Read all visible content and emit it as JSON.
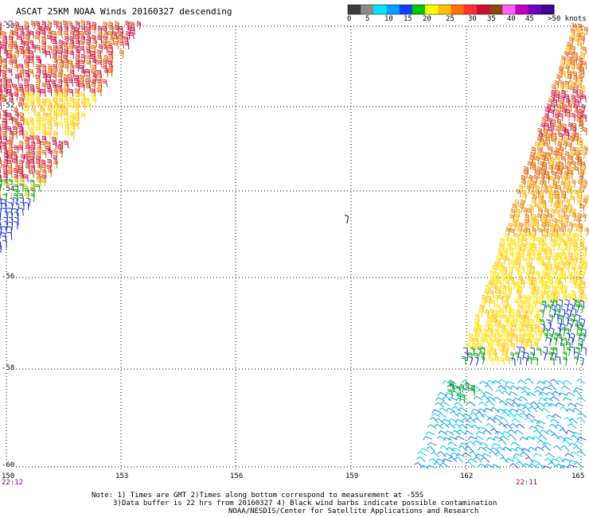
{
  "title": "ASCAT 25KM NOAA Winds 20160327 descending",
  "color_scale": {
    "colors": [
      "#3c3c3c",
      "#8c8c8c",
      "#00e5ff",
      "#00a0ff",
      "#1040ff",
      "#00c800",
      "#ffff00",
      "#ffc000",
      "#ff7000",
      "#ff3030",
      "#cc1030",
      "#8b4513",
      "#ff60ff",
      "#c000c0",
      "#7000c0",
      "#400090"
    ],
    "labels": [
      "0",
      "5",
      "10",
      "15",
      "20",
      "25",
      "30",
      "35",
      "40",
      "45",
      ">50 knots"
    ]
  },
  "lat_labels": [
    "-50",
    "-52",
    "-54",
    "-56",
    "-58",
    "-60"
  ],
  "lon_labels": [
    "150",
    "153",
    "156",
    "159",
    "162",
    "165"
  ],
  "time_labels": [
    "22:12",
    "22:11"
  ],
  "notes": [
    "Note: 1) Times are GMT 2)Times along bottom correspond to measurement at -55S",
    "3)Data buffer is 22 hrs from 20160327 4) Black wind barbs indicate possible contamination",
    "NOAA/NESDIS/Center for Satellite Applications and Research"
  ]
}
